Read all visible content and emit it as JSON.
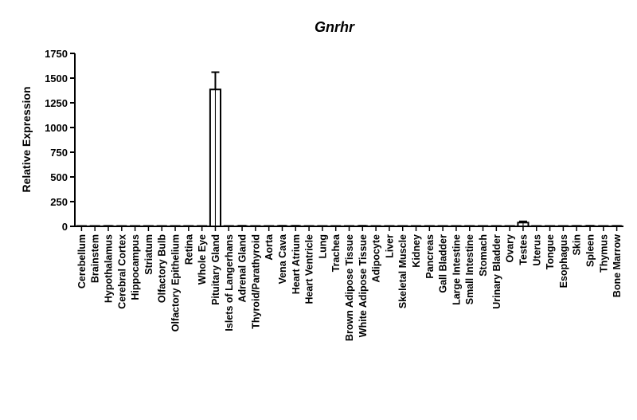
{
  "chart_data": {
    "type": "bar",
    "title": "Gnrhr",
    "xlabel": "",
    "ylabel": "Relative Expression",
    "ylim": [
      0,
      1750
    ],
    "yticks": [
      0,
      250,
      500,
      750,
      1000,
      1250,
      1500,
      1750
    ],
    "grid": false,
    "categories": [
      "Cerebellum",
      "Brainstem",
      "Hypothalamus",
      "Cerebral Cortex",
      "Hippocampus",
      "Striatum",
      "Olfactory Bulb",
      "Olfactory Epithelium",
      "Retina",
      "Whole Eye",
      "Pituitary Gland",
      "Islets of Langerhans",
      "Adrenal Gland",
      "Thyroid/Parathyroid",
      "Aorta",
      "Vena Cava",
      "Heart Atrium",
      "Heart Ventricle",
      "Lung",
      "Trachea",
      "Brown Adipose Tissue",
      "White Adipose Tissue",
      "Adipocyte",
      "Liver",
      "Skeletal Muscle",
      "Kidney",
      "Pancreas",
      "Gall Bladder",
      "Large Intestine",
      "Small Intestine",
      "Stomach",
      "Urinary Bladder",
      "Ovary",
      "Testes",
      "Uterus",
      "Tongue",
      "Esophagus",
      "Skin",
      "Spleen",
      "Thymus",
      "Bone Marrow"
    ],
    "values": [
      1,
      1,
      3,
      1,
      1,
      1,
      1,
      1,
      1,
      2,
      1385,
      1,
      4,
      2,
      2,
      4,
      4,
      2,
      2,
      1,
      1,
      4,
      1,
      1,
      1,
      1,
      1,
      1,
      1,
      1,
      1,
      2,
      2,
      38,
      1,
      1,
      1,
      3,
      4,
      2,
      3
    ],
    "errors": [
      0,
      0,
      2,
      0,
      0,
      0,
      0,
      0,
      0,
      1,
      175,
      0,
      2,
      1,
      1,
      2,
      2,
      1,
      1,
      0,
      0,
      2,
      0,
      0,
      0,
      0,
      0,
      0,
      0,
      0,
      0,
      1,
      1,
      12,
      0,
      0,
      0,
      2,
      2,
      1,
      2
    ]
  }
}
